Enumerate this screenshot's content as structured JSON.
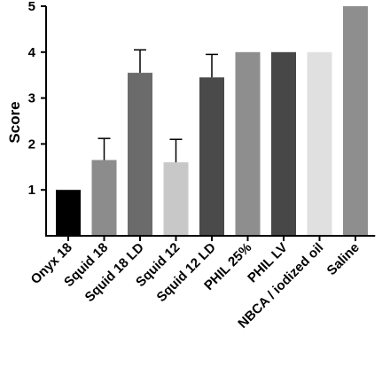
{
  "chart_data": {
    "type": "bar",
    "title": "",
    "xlabel": "",
    "ylabel": "Score",
    "ylim": [
      0,
      5
    ],
    "yticks": [
      1,
      2,
      3,
      4,
      5
    ],
    "categories": [
      "Onyx 18",
      "Squid 18",
      "Squid 18 LD",
      "Squid 12",
      "Squid 12 LD",
      "PHIL 25%",
      "PHIL LV",
      "NBCA / iodized oil",
      "Saline"
    ],
    "values": [
      1.0,
      1.65,
      3.55,
      1.6,
      3.45,
      4.0,
      4.0,
      4.0,
      5.0
    ],
    "error_upper": [
      0,
      0.47,
      0.5,
      0.5,
      0.5,
      0,
      0,
      0,
      0
    ],
    "bar_colors": [
      "#000000",
      "#8c8c8c",
      "#6b6b6b",
      "#c8c8c8",
      "#4a4a4a",
      "#8e8e8e",
      "#474747",
      "#e0e0e0",
      "#8e8e8e"
    ],
    "grid": false,
    "legend": "none"
  }
}
